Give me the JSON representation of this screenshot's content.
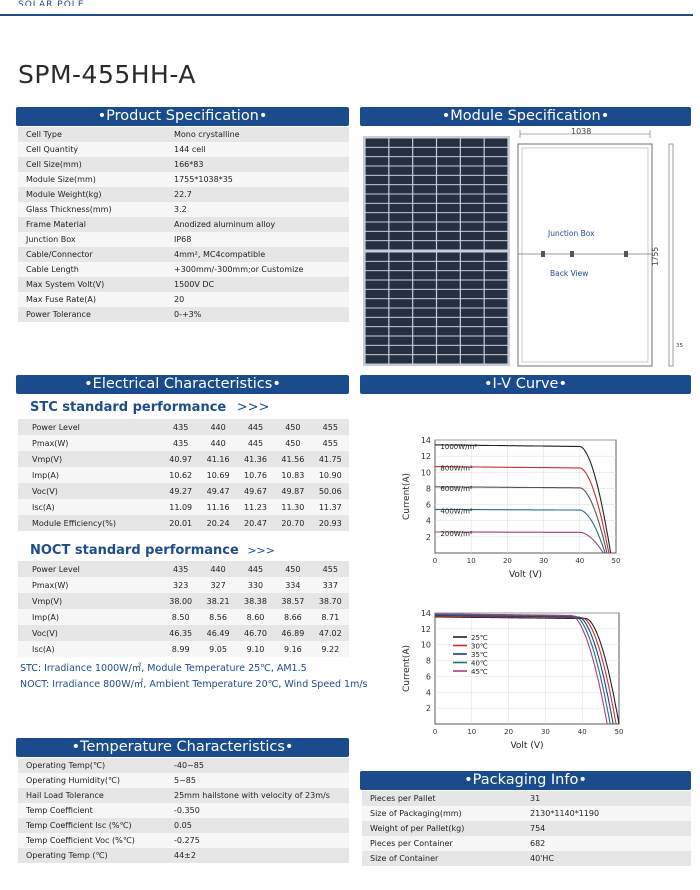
{
  "header": {
    "top_text": "SOLAR POLE"
  },
  "title": "SPM-455HH-A",
  "product": {
    "banner": "•Product Specification•",
    "rows": [
      {
        "k": "Cell Type",
        "v": "Mono crystalline"
      },
      {
        "k": "Cell Quantity",
        "v": "144 cell"
      },
      {
        "k": "Cell Size(mm)",
        "v": "166*83"
      },
      {
        "k": "Module Size(mm)",
        "v": "1755*1038*35"
      },
      {
        "k": "Module Weight(kg)",
        "v": "22.7"
      },
      {
        "k": "Glass Thickness(mm)",
        "v": "3.2"
      },
      {
        "k": "Frame Material",
        "v": "Anodized aluminum alloy"
      },
      {
        "k": "Junction Box",
        "v": "IP68"
      },
      {
        "k": "Cable/Connector",
        "v": "4mm², MC4compatible"
      },
      {
        "k": "Cable Length",
        "v": "+300mm/-300mm;or Customize"
      },
      {
        "k": "Max System Volt(V)",
        "v": "1500V DC"
      },
      {
        "k": "Max Fuse Rate(A)",
        "v": "20"
      },
      {
        "k": "Power Tolerance",
        "v": "0-+3%"
      }
    ]
  },
  "module": {
    "banner": "•Module Specification•",
    "width_label": "1038",
    "height_label": "1755",
    "depth_label": "35",
    "junction_box": "Junction Box",
    "back_view": "Back View"
  },
  "electrical": {
    "banner": "•Electrical Characteristics•",
    "stc_title": "STC standard performance",
    "stc_arrows": ">>>",
    "stc_rows": [
      {
        "k": "Power Level",
        "v": [
          "435",
          "440",
          "445",
          "450",
          "455"
        ]
      },
      {
        "k": "Pmax(W)",
        "v": [
          "435",
          "440",
          "445",
          "450",
          "455"
        ]
      },
      {
        "k": "Vmp(V)",
        "v": [
          "40.97",
          "41.16",
          "41.36",
          "41.56",
          "41.75"
        ]
      },
      {
        "k": "Imp(A)",
        "v": [
          "10.62",
          "10.69",
          "10.76",
          "10.83",
          "10.90"
        ]
      },
      {
        "k": "Voc(V)",
        "v": [
          "49.27",
          "49.47",
          "49.67",
          "49.87",
          "50.06"
        ]
      },
      {
        "k": "Isc(A)",
        "v": [
          "11.09",
          "11.16",
          "11.23",
          "11.30",
          "11.37"
        ]
      },
      {
        "k": "Module Efficiency(%)",
        "v": [
          "20.01",
          "20.24",
          "20.47",
          "20.70",
          "20.93"
        ]
      }
    ],
    "noct_title": "NOCT standard performance",
    "noct_arrows": ">>>",
    "noct_rows": [
      {
        "k": "Power Level",
        "v": [
          "435",
          "440",
          "445",
          "450",
          "455"
        ]
      },
      {
        "k": "Pmax(W)",
        "v": [
          "323",
          "327",
          "330",
          "334",
          "337"
        ]
      },
      {
        "k": "Vmp(V)",
        "v": [
          "38.00",
          "38.21",
          "38.38",
          "38.57",
          "38.70"
        ]
      },
      {
        "k": "Imp(A)",
        "v": [
          "8.50",
          "8.56",
          "8.60",
          "8.66",
          "8.71"
        ]
      },
      {
        "k": "Voc(V)",
        "v": [
          "46.35",
          "46.49",
          "46.70",
          "46.89",
          "47.02"
        ]
      },
      {
        "k": "Isc(A)",
        "v": [
          "8.99",
          "9.05",
          "9.10",
          "9.16",
          "9.22"
        ]
      }
    ],
    "stc_note": "STC: Irradiance 1000W/㎡, Module Temperature 25℃, AM1.5",
    "noct_note": "NOCT: Irradiance 800W/㎡, Ambient Temperature 20℃, Wind Speed 1m/s"
  },
  "iv": {
    "banner": "•I-V Curve•"
  },
  "chart_data": [
    {
      "type": "line",
      "xlabel": "Volt (V)",
      "ylabel": "Current(A)",
      "xlim": [
        0,
        50
      ],
      "ylim": [
        0,
        14
      ],
      "xticks": [
        0,
        10,
        20,
        30,
        40,
        50
      ],
      "yticks": [
        2,
        4,
        6,
        8,
        10,
        12,
        14
      ],
      "series": [
        {
          "name": "1000W/m²",
          "color": "#222222",
          "isc": 13.4,
          "voc": 48.5,
          "knee": 40
        },
        {
          "name": "800W/m²",
          "color": "#c9302c",
          "isc": 10.7,
          "voc": 48,
          "knee": 40
        },
        {
          "name": "600W/m²",
          "color": "#555555",
          "isc": 8.2,
          "voc": 47.5,
          "knee": 40
        },
        {
          "name": "400W/m²",
          "color": "#1f6f8b",
          "isc": 5.4,
          "voc": 47,
          "knee": 40
        },
        {
          "name": "200W/m²",
          "color": "#a04080",
          "isc": 2.6,
          "voc": 46.5,
          "knee": 40
        }
      ]
    },
    {
      "type": "line",
      "xlabel": "Volt (V)",
      "ylabel": "Current(A)",
      "xlim": [
        0,
        50
      ],
      "ylim": [
        0,
        14
      ],
      "xticks": [
        0,
        10,
        20,
        30,
        40,
        50
      ],
      "yticks": [
        2,
        4,
        6,
        8,
        10,
        12,
        14
      ],
      "legend": "top-left",
      "series": [
        {
          "name": "25℃",
          "color": "#222222",
          "isc": 13.5,
          "voc": 50,
          "knee": 41
        },
        {
          "name": "30℃",
          "color": "#c9302c",
          "isc": 13.6,
          "voc": 49.2,
          "knee": 40
        },
        {
          "name": "35℃",
          "color": "#1f3f8b",
          "isc": 13.7,
          "voc": 48.4,
          "knee": 39
        },
        {
          "name": "40℃",
          "color": "#1f6f6f",
          "isc": 13.8,
          "voc": 47.6,
          "knee": 38
        },
        {
          "name": "45℃",
          "color": "#a04080",
          "isc": 13.9,
          "voc": 46.8,
          "knee": 37
        }
      ]
    }
  ],
  "temperature": {
    "banner": "•Temperature Characteristics•",
    "rows": [
      {
        "k": "Operating Temp(℃)",
        "v": "-40~85"
      },
      {
        "k": "Operating Humidity(℃)",
        "v": "5~85"
      },
      {
        "k": "Hail Load Tolerance",
        "v": "25mm hailstone with velocity of 23m/s"
      },
      {
        "k": "Temp Coefficient",
        "v": "-0.350"
      },
      {
        "k": "Temp Coefficient  Isc (%℃)",
        "v": "0.05"
      },
      {
        "k": "Temp Coefficient  Voc (%℃)",
        "v": "-0.275"
      },
      {
        "k": "Operating Temp (℃)",
        "v": "44±2"
      }
    ]
  },
  "packaging": {
    "banner": "•Packaging Info•",
    "rows": [
      {
        "k": "Pieces per Pallet",
        "v": "31"
      },
      {
        "k": "Size of Packaging(mm)",
        "v": "2130*1140*1190"
      },
      {
        "k": "Weight of per Pallet(kg)",
        "v": "754"
      },
      {
        "k": "Pieces per Container",
        "v": "682"
      },
      {
        "k": "Size of Container",
        "v": "40'HC"
      }
    ]
  }
}
